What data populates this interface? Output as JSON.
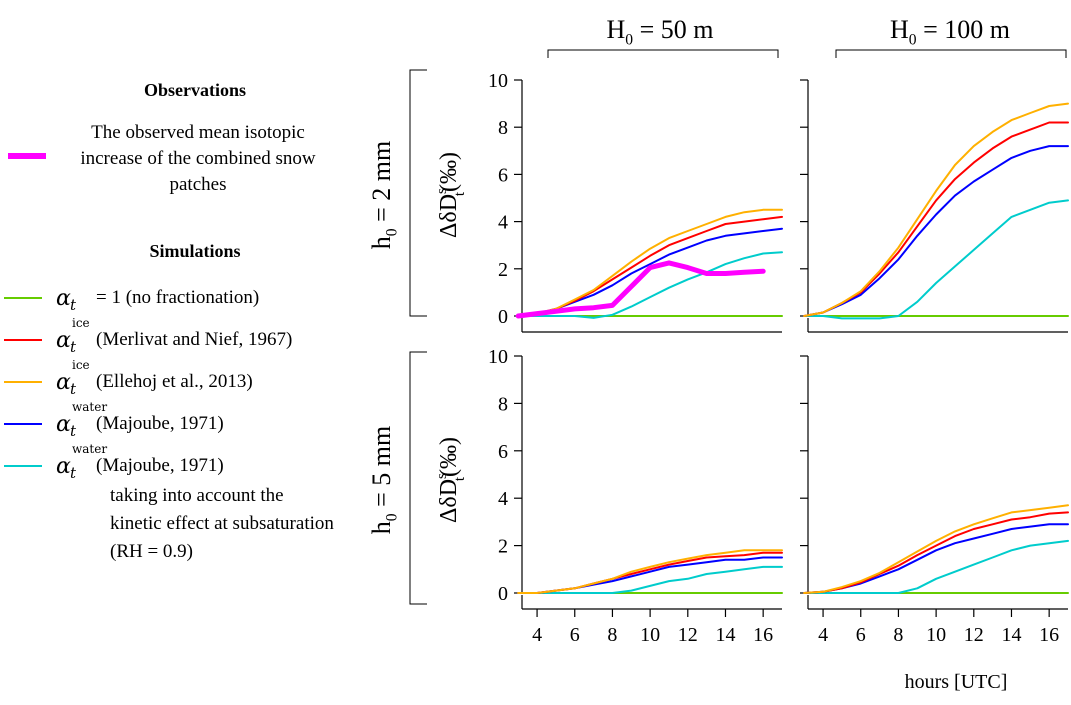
{
  "legend": {
    "observations_heading": "Observations",
    "observations_text": "The observed mean isotopic increase of the combined snow patches",
    "simulations_heading": "Simulations",
    "items": [
      {
        "symbol": "α",
        "subscript": "t",
        "superscript": "",
        "text": "= 1 (no fractionation)",
        "color": "#66cc00"
      },
      {
        "symbol": "α",
        "subscript": "t",
        "superscript": "ice",
        "text": "(Merlivat and Nief, 1967)",
        "color": "#ff0000"
      },
      {
        "symbol": "α",
        "subscript": "t",
        "superscript": "ice",
        "text": "(Ellehoj et al., 2013)",
        "color": "#ffb000"
      },
      {
        "symbol": "α",
        "subscript": "t",
        "superscript": "water",
        "text": "(Majoube, 1971)",
        "color": "#0000ff"
      },
      {
        "symbol": "α",
        "subscript": "t",
        "superscript": "water",
        "text": "(Majoube, 1971)",
        "color": "#00cccc"
      }
    ],
    "last_item_extra": "taking into account the kinetic effect at subsaturation (RH = 0.9)",
    "observation_color": "#ff00ff"
  },
  "chart_data": {
    "type": "line",
    "xlabel": "hours [UTC]",
    "ylabel": "ΔδD",
    "ylabel_sup": "s",
    "ylabel_sub": "t",
    "ylabel_unit": "(‰)",
    "xlim": [
      3.2,
      17
    ],
    "ylim": [
      0,
      10
    ],
    "xticks": [
      4,
      6,
      8,
      10,
      12,
      14,
      16
    ],
    "yticks": [
      0,
      2,
      4,
      6,
      8,
      10
    ],
    "columns": [
      {
        "label_main": "H",
        "label_sub": "0",
        "label_rest": " = 50 m"
      },
      {
        "label_main": "H",
        "label_sub": "0",
        "label_rest": " = 100 m"
      }
    ],
    "rows": [
      {
        "label_main": "h",
        "label_sub": "0",
        "label_rest": " = 2 mm"
      },
      {
        "label_main": "h",
        "label_sub": "0",
        "label_rest": " = 5 mm"
      }
    ],
    "x": [
      3,
      4,
      5,
      6,
      7,
      8,
      9,
      10,
      11,
      12,
      13,
      14,
      15,
      16,
      17
    ],
    "panels": [
      {
        "row": 0,
        "col": 0,
        "series": [
          {
            "color": "#66cc00",
            "values": [
              0,
              0,
              0,
              0,
              0,
              0,
              0,
              0,
              0,
              0,
              0,
              0,
              0,
              0,
              0
            ]
          },
          {
            "color": "#00cccc",
            "values": [
              0,
              0,
              0,
              0,
              -0.08,
              0.05,
              0.4,
              0.8,
              1.2,
              1.55,
              1.85,
              2.2,
              2.45,
              2.65,
              2.7
            ]
          },
          {
            "color": "#0000ff",
            "values": [
              0,
              0.1,
              0.3,
              0.6,
              0.9,
              1.3,
              1.8,
              2.2,
              2.6,
              2.9,
              3.2,
              3.4,
              3.5,
              3.6,
              3.7
            ]
          },
          {
            "color": "#ff0000",
            "values": [
              0,
              0.1,
              0.3,
              0.65,
              1.05,
              1.55,
              2.05,
              2.55,
              3.0,
              3.3,
              3.6,
              3.9,
              4.0,
              4.1,
              4.2
            ]
          },
          {
            "color": "#ffb000",
            "values": [
              0,
              0.1,
              0.3,
              0.7,
              1.1,
              1.7,
              2.3,
              2.85,
              3.3,
              3.6,
              3.9,
              4.2,
              4.4,
              4.5,
              4.5
            ]
          },
          {
            "color": "#ff00ff",
            "values": [
              0,
              0.1,
              0.2,
              0.3,
              0.35,
              0.45,
              1.25,
              2.05,
              2.25,
              2.05,
              1.8,
              1.8,
              1.85,
              1.9
            ],
            "observed": true
          }
        ]
      },
      {
        "row": 0,
        "col": 1,
        "series": [
          {
            "color": "#66cc00",
            "values": [
              0,
              0,
              0,
              0,
              0,
              0,
              0,
              0,
              0,
              0,
              0,
              0,
              0,
              0,
              0
            ]
          },
          {
            "color": "#00cccc",
            "values": [
              0,
              0,
              -0.1,
              -0.1,
              -0.1,
              0,
              0.6,
              1.4,
              2.1,
              2.8,
              3.5,
              4.2,
              4.5,
              4.8,
              4.9
            ]
          },
          {
            "color": "#0000ff",
            "values": [
              0,
              0.15,
              0.5,
              0.9,
              1.6,
              2.4,
              3.4,
              4.3,
              5.1,
              5.7,
              6.2,
              6.7,
              7.0,
              7.2,
              7.2
            ]
          },
          {
            "color": "#ff0000",
            "values": [
              0,
              0.15,
              0.55,
              1.0,
              1.8,
              2.7,
              3.8,
              4.9,
              5.8,
              6.5,
              7.1,
              7.6,
              7.9,
              8.2,
              8.2
            ]
          },
          {
            "color": "#ffb000",
            "values": [
              0,
              0.15,
              0.55,
              1.05,
              1.9,
              2.9,
              4.1,
              5.3,
              6.4,
              7.2,
              7.8,
              8.3,
              8.6,
              8.9,
              9.0
            ]
          }
        ]
      },
      {
        "row": 1,
        "col": 0,
        "series": [
          {
            "color": "#66cc00",
            "values": [
              0,
              0,
              0,
              0,
              0,
              0,
              0,
              0,
              0,
              0,
              0,
              0,
              0,
              0,
              0
            ]
          },
          {
            "color": "#00cccc",
            "values": [
              0,
              0,
              0,
              0,
              0,
              0,
              0.1,
              0.3,
              0.5,
              0.6,
              0.8,
              0.9,
              1.0,
              1.1,
              1.1
            ]
          },
          {
            "color": "#0000ff",
            "values": [
              0,
              0,
              0.1,
              0.2,
              0.35,
              0.5,
              0.7,
              0.9,
              1.1,
              1.2,
              1.3,
              1.4,
              1.4,
              1.5,
              1.5
            ]
          },
          {
            "color": "#ff0000",
            "values": [
              0,
              0,
              0.1,
              0.2,
              0.4,
              0.6,
              0.8,
              1.0,
              1.2,
              1.35,
              1.5,
              1.55,
              1.6,
              1.7,
              1.7
            ]
          },
          {
            "color": "#ffb000",
            "values": [
              0,
              0,
              0.1,
              0.2,
              0.4,
              0.6,
              0.9,
              1.1,
              1.3,
              1.45,
              1.6,
              1.7,
              1.8,
              1.8,
              1.8
            ]
          }
        ]
      },
      {
        "row": 1,
        "col": 1,
        "series": [
          {
            "color": "#66cc00",
            "values": [
              0,
              0,
              0,
              0,
              0,
              0,
              0,
              0,
              0,
              0,
              0,
              0,
              0,
              0,
              0
            ]
          },
          {
            "color": "#00cccc",
            "values": [
              0,
              0,
              0,
              0,
              0,
              0,
              0.2,
              0.6,
              0.9,
              1.2,
              1.5,
              1.8,
              2.0,
              2.1,
              2.2
            ]
          },
          {
            "color": "#0000ff",
            "values": [
              0,
              0.05,
              0.2,
              0.4,
              0.7,
              1.0,
              1.4,
              1.8,
              2.1,
              2.3,
              2.5,
              2.7,
              2.8,
              2.9,
              2.9
            ]
          },
          {
            "color": "#ff0000",
            "values": [
              0,
              0.05,
              0.2,
              0.45,
              0.8,
              1.15,
              1.6,
              2.0,
              2.4,
              2.7,
              2.9,
              3.1,
              3.2,
              3.35,
              3.4
            ]
          },
          {
            "color": "#ffb000",
            "values": [
              0,
              0.05,
              0.25,
              0.5,
              0.85,
              1.3,
              1.75,
              2.2,
              2.6,
              2.9,
              3.15,
              3.4,
              3.5,
              3.6,
              3.7
            ]
          }
        ]
      }
    ]
  }
}
